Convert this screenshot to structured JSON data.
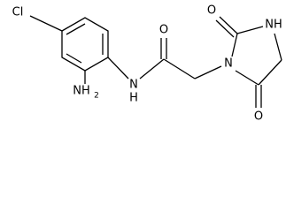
{
  "atoms": [
    {
      "label": "Cl"
    },
    {
      "label": "NH"
    },
    {
      "label": "2"
    },
    {
      "label": "N"
    },
    {
      "label": "H"
    },
    {
      "label": "O"
    },
    {
      "label": "N"
    },
    {
      "label": "O"
    },
    {
      "label": "NH"
    },
    {
      "label": "O"
    }
  ]
}
